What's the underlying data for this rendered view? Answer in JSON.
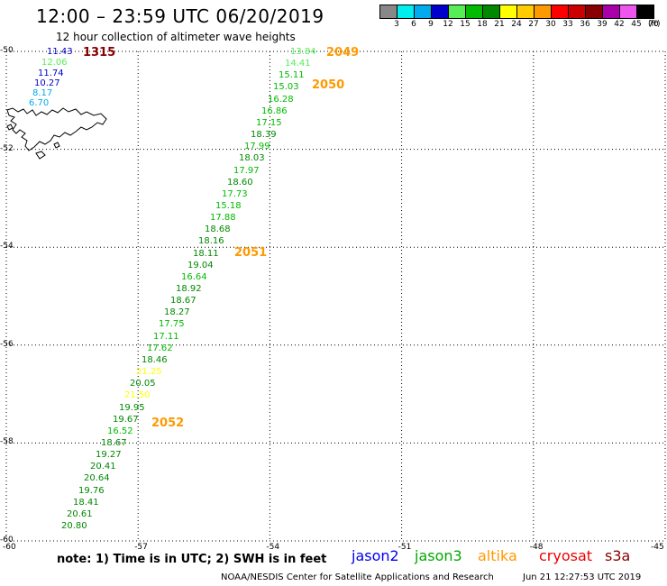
{
  "header": {
    "title": "12:00 – 23:59 UTC 06/20/2019",
    "subtitle": "12 hour collection of altimeter wave heights"
  },
  "legend": {
    "units": "(ft)",
    "bins": [
      {
        "label": "3",
        "color": "#888888"
      },
      {
        "label": "6",
        "color": "#00eeee"
      },
      {
        "label": "9",
        "color": "#00aaee"
      },
      {
        "label": "12",
        "color": "#0000cc"
      },
      {
        "label": "15",
        "color": "#55ee55"
      },
      {
        "label": "18",
        "color": "#00bb00"
      },
      {
        "label": "21",
        "color": "#008800"
      },
      {
        "label": "24",
        "color": "#ffff00"
      },
      {
        "label": "27",
        "color": "#ffcc00"
      },
      {
        "label": "30",
        "color": "#ff9900"
      },
      {
        "label": "33",
        "color": "#ff0000"
      },
      {
        "label": "36",
        "color": "#cc0000"
      },
      {
        "label": "39",
        "color": "#880000"
      },
      {
        "label": "42",
        "color": "#aa00aa"
      },
      {
        "label": "45",
        "color": "#ee55ee"
      },
      {
        "label": "70",
        "color": "#000000"
      }
    ]
  },
  "axes": {
    "lat_ticks": [
      "-50",
      "-52",
      "-54",
      "-56",
      "-58",
      "-60"
    ],
    "lon_ticks": [
      "-60",
      "-57",
      "-54",
      "-51",
      "-48",
      "-45"
    ],
    "grid": "dotted"
  },
  "observations": {
    "sat_a": {
      "color_key": "altimeter-multi",
      "values": [
        {
          "v": "11.43",
          "c": "#0000cc"
        },
        {
          "v": "12.06",
          "c": "#55ee55"
        },
        {
          "v": "11.74",
          "c": "#0000cc"
        },
        {
          "v": "10.27",
          "c": "#0000cc"
        },
        {
          "v": "8.17",
          "c": "#00aaee"
        },
        {
          "v": "6.70",
          "c": "#00aaee"
        }
      ],
      "pass_label": {
        "text": "1315",
        "color": "#880000"
      }
    },
    "track_upper": {
      "values": [
        {
          "v": "13.84",
          "c": "#55ee55"
        },
        {
          "v": "14.41",
          "c": "#55ee55"
        },
        {
          "v": "15.11",
          "c": "#00bb00"
        },
        {
          "v": "15.03",
          "c": "#00bb00"
        },
        {
          "v": "16.28",
          "c": "#00bb00"
        },
        {
          "v": "16.86",
          "c": "#00bb00"
        },
        {
          "v": "17.15",
          "c": "#00bb00"
        },
        {
          "v": "18.39",
          "c": "#008800"
        },
        {
          "v": "17.99",
          "c": "#00bb00"
        },
        {
          "v": "18.03",
          "c": "#008800"
        },
        {
          "v": "17.97",
          "c": "#00bb00"
        },
        {
          "v": "18.60",
          "c": "#008800"
        },
        {
          "v": "17.73",
          "c": "#00bb00"
        },
        {
          "v": "15.18",
          "c": "#00bb00"
        },
        {
          "v": "17.88",
          "c": "#00bb00"
        },
        {
          "v": "18.68",
          "c": "#008800"
        },
        {
          "v": "18.16",
          "c": "#008800"
        },
        {
          "v": "18.11",
          "c": "#008800"
        },
        {
          "v": "19.04",
          "c": "#008800"
        },
        {
          "v": "16.64",
          "c": "#00bb00"
        },
        {
          "v": "18.92",
          "c": "#008800"
        },
        {
          "v": "18.67",
          "c": "#008800"
        },
        {
          "v": "18.27",
          "c": "#008800"
        },
        {
          "v": "17.75",
          "c": "#00bb00"
        },
        {
          "v": "17.11",
          "c": "#00bb00"
        },
        {
          "v": "17.62",
          "c": "#00bb00"
        },
        {
          "v": "18.46",
          "c": "#008800"
        },
        {
          "v": "21.25",
          "c": "#ffff00"
        },
        {
          "v": "20.05",
          "c": "#008800"
        },
        {
          "v": "21.50",
          "c": "#ffff00"
        },
        {
          "v": "19.95",
          "c": "#008800"
        },
        {
          "v": "19.67",
          "c": "#008800"
        },
        {
          "v": "16.52",
          "c": "#00bb00"
        },
        {
          "v": "18.67",
          "c": "#008800"
        },
        {
          "v": "19.27",
          "c": "#008800"
        },
        {
          "v": "20.41",
          "c": "#008800"
        },
        {
          "v": "20.64",
          "c": "#008800"
        },
        {
          "v": "19.76",
          "c": "#008800"
        },
        {
          "v": "18.41",
          "c": "#008800"
        },
        {
          "v": "20.61",
          "c": "#008800"
        },
        {
          "v": "20.80",
          "c": "#008800"
        }
      ],
      "pass_labels": [
        {
          "text": "2049",
          "color": "#ff9900"
        },
        {
          "text": "2050",
          "color": "#ff9900"
        },
        {
          "text": "2051",
          "color": "#ff9900"
        },
        {
          "text": "2052",
          "color": "#ff9900"
        }
      ]
    }
  },
  "footer": {
    "note": "note: 1) Time is in UTC; 2) SWH is in feet",
    "satellites": [
      {
        "name": "jason2",
        "color": "#0000ee"
      },
      {
        "name": "jason3",
        "color": "#00aa00"
      },
      {
        "name": "altika",
        "color": "#ff9900"
      },
      {
        "name": "cryosat",
        "color": "#ee0000"
      },
      {
        "name": "s3a",
        "color": "#880000"
      }
    ],
    "credit": "NOAA/NESDIS Center for Satellite Applications and Research",
    "timestamp": "Jun 21 12:27:53 UTC 2019"
  }
}
